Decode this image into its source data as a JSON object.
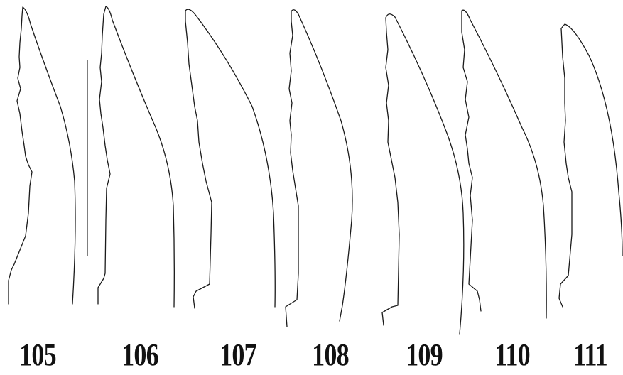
{
  "figures": [
    {
      "label": "105"
    },
    {
      "label": "106"
    },
    {
      "label": "107"
    },
    {
      "label": "108"
    },
    {
      "label": "109"
    },
    {
      "label": "110"
    },
    {
      "label": "111"
    }
  ]
}
